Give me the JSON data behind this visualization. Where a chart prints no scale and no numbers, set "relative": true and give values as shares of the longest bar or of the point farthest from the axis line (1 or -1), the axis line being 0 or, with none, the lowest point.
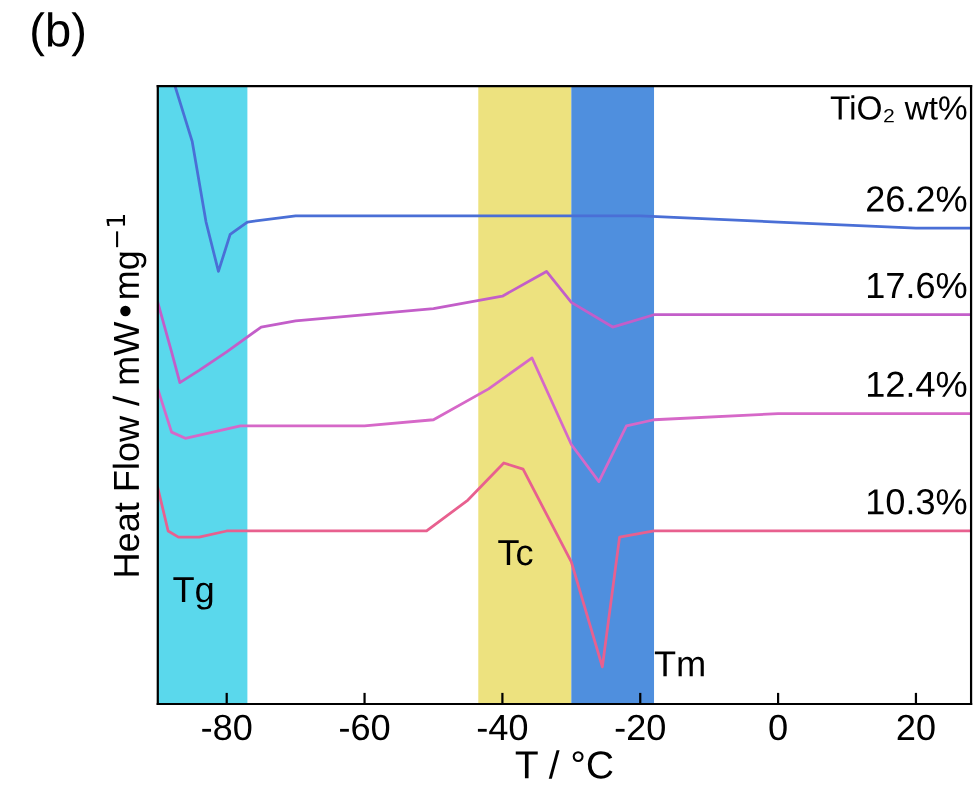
{
  "chart_data": {
    "type": "line",
    "relative": true,
    "xlabel": "T / °C",
    "ylabel": "Heat Flow / mW•mg$^{−1}$",
    "legend_title": "TiO₂ wt%",
    "legend": "right",
    "xlim": [
      -90,
      28
    ],
    "xticks": [
      -80,
      -60,
      -40,
      -20,
      0,
      20
    ],
    "grid": false,
    "marker": "none",
    "line_style": "solid",
    "series": [
      {
        "name": "26.2%",
        "color": "#4a6fd6",
        "x": [
          -87.5,
          -85,
          -83,
          -81.2,
          -79.5,
          -77,
          -70,
          -40,
          -20,
          0,
          20,
          28
        ],
        "values": [
          1.0,
          0.91,
          0.78,
          0.7,
          0.76,
          0.78,
          0.79,
          0.79,
          0.79,
          0.78,
          0.77,
          0.77
        ]
      },
      {
        "name": "17.6%",
        "color": "#c35ec9",
        "x": [
          -90,
          -88,
          -86.8,
          -84,
          -80,
          -75,
          -70,
          -50,
          -40,
          -33.6,
          -30,
          -24,
          -18,
          0,
          28
        ],
        "values": [
          0.65,
          0.57,
          0.52,
          0.54,
          0.57,
          0.61,
          0.62,
          0.64,
          0.66,
          0.7,
          0.65,
          0.61,
          0.63,
          0.63,
          0.63
        ]
      },
      {
        "name": "12.4%",
        "color": "#d668c8",
        "x": [
          -90,
          -88,
          -86,
          -82,
          -78,
          -60,
          -50,
          -42,
          -35.7,
          -30,
          -26,
          -22,
          -18,
          0,
          28
        ],
        "values": [
          0.51,
          0.44,
          0.43,
          0.44,
          0.45,
          0.45,
          0.46,
          0.51,
          0.56,
          0.42,
          0.36,
          0.45,
          0.46,
          0.47,
          0.47
        ]
      },
      {
        "name": "10.3%",
        "color": "#e8608f",
        "x": [
          -90,
          -88.5,
          -87,
          -84,
          -80,
          -60,
          -51,
          -45,
          -39.8,
          -37,
          -30,
          -25.5,
          -23,
          -18,
          0,
          28
        ],
        "values": [
          0.35,
          0.28,
          0.27,
          0.27,
          0.28,
          0.28,
          0.28,
          0.33,
          0.39,
          0.38,
          0.23,
          0.06,
          0.27,
          0.28,
          0.28,
          0.28
        ]
      }
    ],
    "bands": [
      {
        "axis": "x",
        "from": -90,
        "to": -77,
        "color": "#5ad8ec",
        "label": "Tg"
      },
      {
        "axis": "x",
        "from": -43.5,
        "to": -30,
        "color": "#ede27f",
        "label": "Tc"
      },
      {
        "axis": "x",
        "from": -30,
        "to": -18,
        "color": "#4f8fde",
        "label": "Tm"
      }
    ],
    "annotations": [
      "(b)"
    ]
  }
}
